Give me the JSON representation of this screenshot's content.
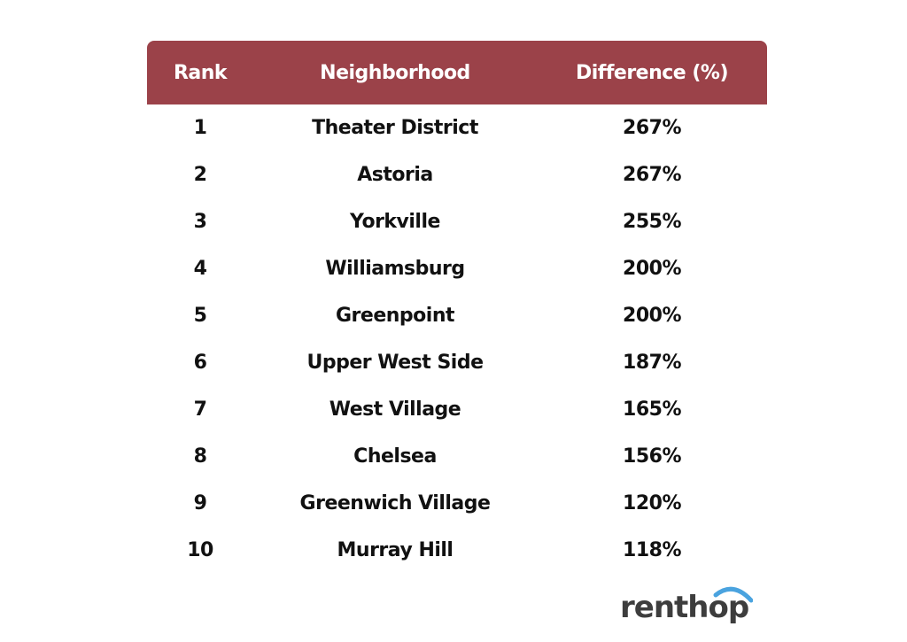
{
  "chart_data": {
    "type": "table",
    "columns": [
      "Rank",
      "Neighborhood",
      "Difference (%)"
    ],
    "rows": [
      {
        "rank": "1",
        "neighborhood": "Theater District",
        "difference": "267%"
      },
      {
        "rank": "2",
        "neighborhood": "Astoria",
        "difference": "267%"
      },
      {
        "rank": "3",
        "neighborhood": "Yorkville",
        "difference": "255%"
      },
      {
        "rank": "4",
        "neighborhood": "Williamsburg",
        "difference": "200%"
      },
      {
        "rank": "5",
        "neighborhood": "Greenpoint",
        "difference": "200%"
      },
      {
        "rank": "6",
        "neighborhood": "Upper West Side",
        "difference": "187%"
      },
      {
        "rank": "7",
        "neighborhood": "West Village",
        "difference": "165%"
      },
      {
        "rank": "8",
        "neighborhood": "Chelsea",
        "difference": "156%"
      },
      {
        "rank": "9",
        "neighborhood": "Greenwich Village",
        "difference": "120%"
      },
      {
        "rank": "10",
        "neighborhood": "Murray Hill",
        "difference": "118%"
      }
    ]
  },
  "brand": {
    "logo_text": "renthop",
    "header_color": "#9b4249",
    "logo_text_color": "#3d3d3d",
    "logo_arc_color": "#4aa3df"
  }
}
